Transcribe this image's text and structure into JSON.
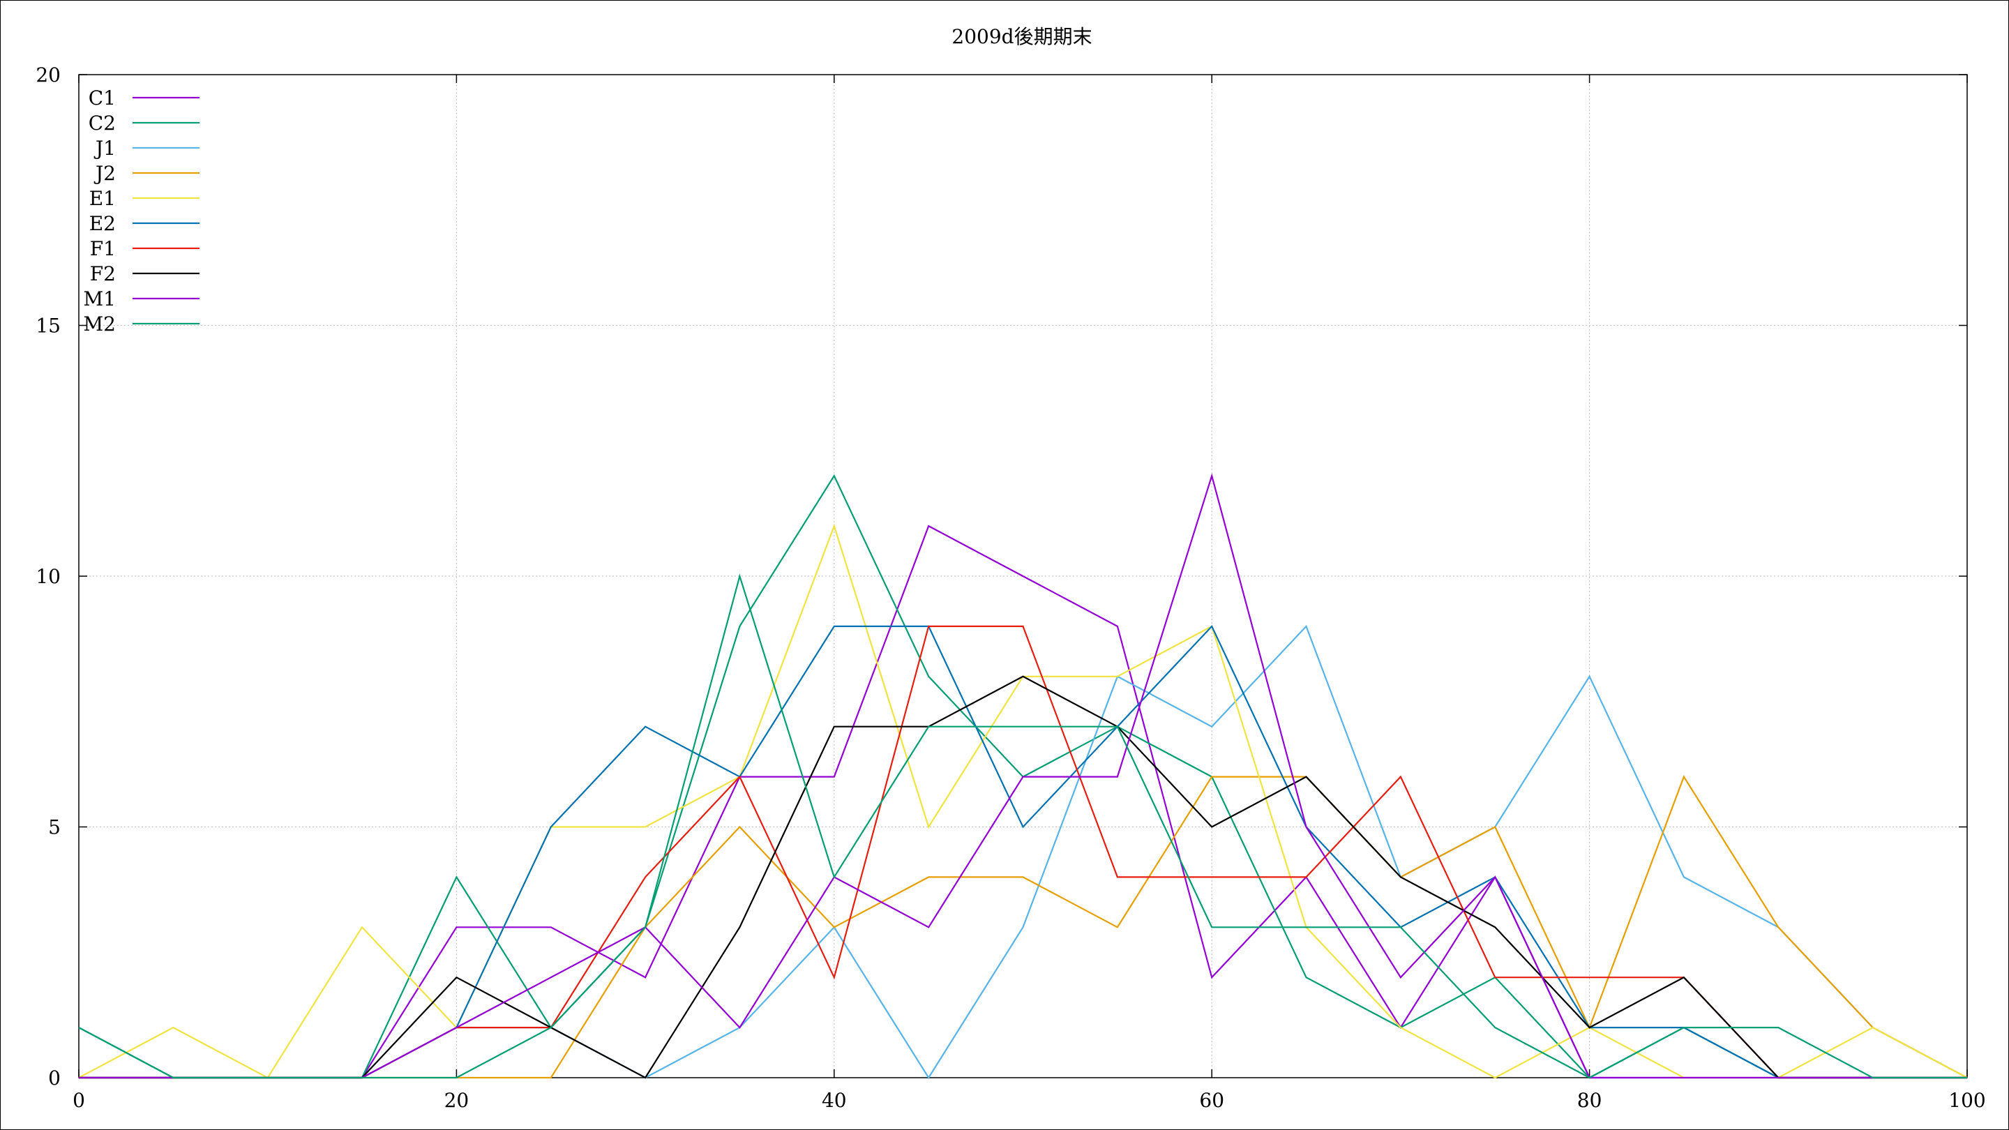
{
  "chart_data": {
    "type": "line",
    "title": "2009d後期期末",
    "xlabel": "",
    "ylabel": "",
    "xlim": [
      0,
      100
    ],
    "ylim": [
      0,
      20
    ],
    "xticks": [
      0,
      20,
      40,
      60,
      80,
      100
    ],
    "yticks": [
      0,
      5,
      10,
      15,
      20
    ],
    "x_tick_labels": [
      "0",
      "20",
      "40",
      "60",
      "80",
      "100"
    ],
    "y_tick_labels": [
      "0",
      "5",
      "10",
      "15",
      "20"
    ],
    "grid": true,
    "legend_position": "top-left",
    "x": [
      0,
      5,
      10,
      15,
      20,
      25,
      30,
      35,
      40,
      45,
      50,
      55,
      60,
      65,
      70,
      75,
      80,
      85,
      90,
      95,
      100
    ],
    "series": [
      {
        "name": "C1",
        "color": "#9400d3",
        "values": [
          0,
          0,
          0,
          0,
          3,
          3,
          2,
          6,
          6,
          11,
          10,
          9,
          2,
          4,
          1,
          4,
          0,
          0,
          0,
          0,
          0
        ]
      },
      {
        "name": "C2",
        "color": "#009e73",
        "values": [
          1,
          0,
          0,
          0,
          4,
          1,
          3,
          9,
          12,
          8,
          6,
          7,
          6,
          2,
          1,
          2,
          0,
          1,
          0,
          0,
          0
        ]
      },
      {
        "name": "J1",
        "color": "#56b4e9",
        "values": [
          0,
          0,
          0,
          0,
          1,
          1,
          0,
          1,
          3,
          0,
          3,
          8,
          7,
          9,
          4,
          5,
          8,
          4,
          3,
          1,
          0
        ]
      },
      {
        "name": "J2",
        "color": "#e69f00",
        "values": [
          0,
          0,
          0,
          0,
          0,
          0,
          3,
          5,
          3,
          4,
          4,
          3,
          6,
          6,
          4,
          5,
          1,
          6,
          3,
          1,
          0
        ]
      },
      {
        "name": "E1",
        "color": "#f0e442",
        "values": [
          0,
          1,
          0,
          3,
          1,
          5,
          5,
          6,
          11,
          5,
          8,
          8,
          9,
          3,
          1,
          0,
          1,
          0,
          0,
          1,
          0
        ]
      },
      {
        "name": "E2",
        "color": "#0072b2",
        "values": [
          0,
          0,
          0,
          0,
          1,
          5,
          7,
          6,
          9,
          9,
          5,
          7,
          9,
          5,
          3,
          4,
          1,
          1,
          0,
          0,
          0
        ]
      },
      {
        "name": "F1",
        "color": "#e51e10",
        "values": [
          0,
          0,
          0,
          0,
          1,
          1,
          4,
          6,
          2,
          9,
          9,
          4,
          4,
          4,
          6,
          2,
          2,
          2,
          0,
          0,
          0
        ]
      },
      {
        "name": "F2",
        "color": "#000000",
        "values": [
          0,
          0,
          0,
          0,
          2,
          1,
          0,
          3,
          7,
          7,
          8,
          7,
          5,
          6,
          4,
          3,
          1,
          2,
          0,
          0,
          0
        ]
      },
      {
        "name": "M1",
        "color": "#9400d3",
        "values": [
          0,
          0,
          0,
          0,
          1,
          2,
          3,
          1,
          4,
          3,
          6,
          6,
          12,
          5,
          2,
          4,
          0,
          0,
          0,
          0,
          0
        ]
      },
      {
        "name": "M2",
        "color": "#009e73",
        "values": [
          1,
          0,
          0,
          0,
          0,
          1,
          3,
          10,
          4,
          7,
          7,
          7,
          3,
          3,
          3,
          1,
          0,
          1,
          1,
          0,
          0
        ]
      }
    ]
  }
}
